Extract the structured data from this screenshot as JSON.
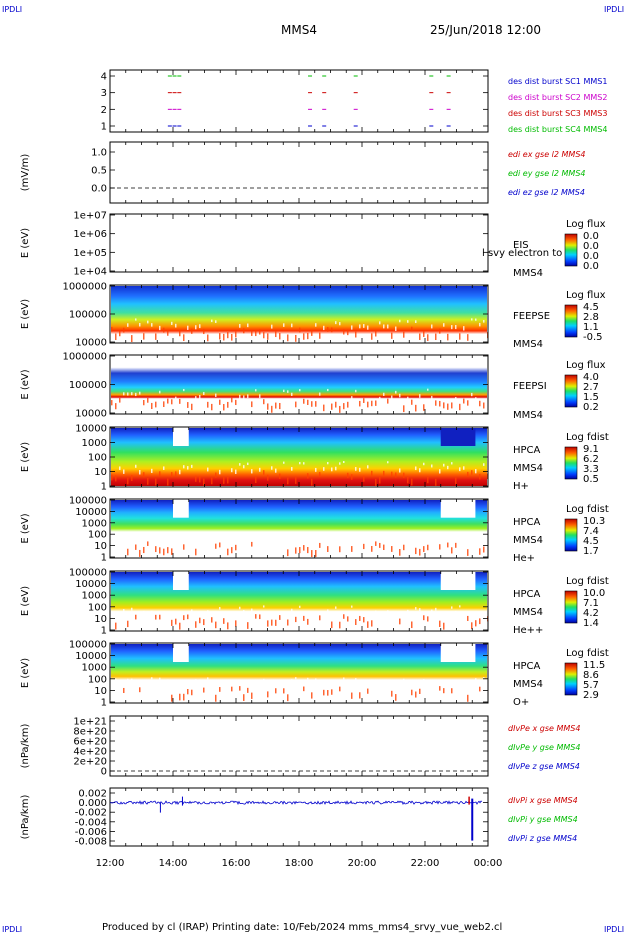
{
  "corner_label": "IPDLI",
  "header": {
    "spacecraft": "MMS4",
    "datetime": "25/Jun/2018 12:00"
  },
  "footer": {
    "text": "Produced by cl (IRAP)   Printing date: 10/Feb/2024   mms_mms4_srvy_vue_web2.cl"
  },
  "time_axis": {
    "ticks": [
      "12:00",
      "14:00",
      "16:00",
      "18:00",
      "20:00",
      "22:00",
      "00:00"
    ]
  },
  "chart_data": [
    {
      "type": "line",
      "id": "burst",
      "yticks": [
        "4",
        "3",
        "2",
        "1"
      ],
      "ylim": [
        0.5,
        4.5
      ],
      "legend": [
        {
          "label": "des dist burst SC1 MMS1",
          "color": "#0000cc"
        },
        {
          "label": "des dist burst SC2 MMS2",
          "color": "#cc00cc"
        },
        {
          "label": "des dist burst SC3 MMS3",
          "color": "#cc0000"
        },
        {
          "label": "des dist burst SC4 MMS4",
          "color": "#00bb00"
        }
      ],
      "series": [
        {
          "level": 4,
          "color": "#00bb00",
          "x": [
            13.9,
            14.05,
            14.2,
            18.35,
            18.8,
            19.8,
            22.2,
            22.75
          ]
        },
        {
          "level": 3,
          "color": "#cc0000",
          "x": [
            13.9,
            14.05,
            14.2,
            18.35,
            18.8,
            19.8,
            22.2,
            22.75
          ]
        },
        {
          "level": 2,
          "color": "#cc00cc",
          "x": [
            13.9,
            14.05,
            14.2,
            18.35,
            18.8,
            19.8,
            22.2,
            22.75
          ]
        },
        {
          "level": 1,
          "color": "#0000cc",
          "x": [
            13.9,
            14.05,
            14.2,
            18.35,
            18.8,
            19.8,
            22.2,
            22.75
          ]
        }
      ]
    },
    {
      "type": "line",
      "id": "edi",
      "ylabel": "(mV/m)",
      "yticks": [
        "1.0",
        "0.5",
        "0.0"
      ],
      "ylim": [
        -0.1,
        1.2
      ],
      "legend": [
        {
          "label": "edi ex gse l2 MMS4",
          "color": "#cc0000"
        },
        {
          "label": "edi ey gse l2 MMS4",
          "color": "#00bb00"
        },
        {
          "label": "edi ez gse l2 MMS4",
          "color": "#0000cc"
        }
      ]
    },
    {
      "type": "heatmap",
      "id": "eis",
      "ylabel": "E (eV)",
      "yticks": [
        "1e+07",
        "1e+06",
        "1e+05",
        "1e+04"
      ],
      "ylim": [
        10000,
        10000000
      ],
      "side_labels": [
        "EIS",
        "MMS4"
      ],
      "overlay_text": "l svy electron to",
      "cbar_title": "Log flux",
      "cbar_ticks": [
        "0.0",
        "0.0",
        "0.0",
        "0.0"
      ]
    },
    {
      "type": "heatmap",
      "id": "feepse",
      "ylabel": "E (eV)",
      "yticks": [
        "1000000",
        "100000",
        "10000"
      ],
      "ylim": [
        10000,
        1000000
      ],
      "side_labels": [
        "FEEPSE",
        "MMS4"
      ],
      "cbar_title": "Log flux",
      "cbar_ticks": [
        "4.5",
        "2.8",
        "1.1",
        "-0.5"
      ]
    },
    {
      "type": "heatmap",
      "id": "feepsi",
      "ylabel": "E (eV)",
      "yticks": [
        "1000000",
        "100000",
        "10000"
      ],
      "ylim": [
        10000,
        1000000
      ],
      "side_labels": [
        "FEEPSI",
        "MMS4"
      ],
      "cbar_title": "Log flux",
      "cbar_ticks": [
        "4.0",
        "2.7",
        "1.5",
        "0.2"
      ]
    },
    {
      "type": "heatmap",
      "id": "hpca_h",
      "ylabel": "E (eV)",
      "yticks": [
        "10000",
        "1000",
        "100",
        "10",
        "1"
      ],
      "ylim": [
        1,
        40000
      ],
      "side_labels": [
        "HPCA",
        "MMS4",
        "H+"
      ],
      "cbar_title": "Log fdist",
      "cbar_ticks": [
        "9.1",
        "6.2",
        "3.3",
        "0.5"
      ]
    },
    {
      "type": "heatmap",
      "id": "hpca_he",
      "ylabel": "E (eV)",
      "yticks": [
        "100000",
        "10000",
        "1000",
        "100",
        "10",
        "1"
      ],
      "ylim": [
        1,
        100000
      ],
      "side_labels": [
        "HPCA",
        "MMS4",
        "He+"
      ],
      "cbar_title": "Log fdist",
      "cbar_ticks": [
        "10.3",
        "7.4",
        "4.5",
        "1.7"
      ]
    },
    {
      "type": "heatmap",
      "id": "hpca_hepp",
      "ylabel": "E (eV)",
      "yticks": [
        "100000",
        "10000",
        "1000",
        "100",
        "10",
        "1"
      ],
      "ylim": [
        1,
        100000
      ],
      "side_labels": [
        "HPCA",
        "MMS4",
        "He++"
      ],
      "cbar_title": "Log fdist",
      "cbar_ticks": [
        "10.0",
        "7.1",
        "4.2",
        "1.4"
      ]
    },
    {
      "type": "heatmap",
      "id": "hpca_o",
      "ylabel": "E (eV)",
      "yticks": [
        "100000",
        "10000",
        "1000",
        "100",
        "10",
        "1"
      ],
      "ylim": [
        1,
        100000
      ],
      "side_labels": [
        "HPCA",
        "MMS4",
        "O+"
      ],
      "cbar_title": "Log fdist",
      "cbar_ticks": [
        "11.5",
        "8.6",
        "5.7",
        "2.9"
      ]
    },
    {
      "type": "line",
      "id": "divpe",
      "ylabel": "(nPa/km)",
      "yticks": [
        "1e+21",
        "8e+20",
        "6e+20",
        "4e+20",
        "2e+20",
        "0"
      ],
      "ylim": [
        -1e+19,
        1.08e+21
      ],
      "legend": [
        {
          "label": "dIvPe x gse MMS4",
          "color": "#cc0000"
        },
        {
          "label": "dIvPe y gse MMS4",
          "color": "#00bb00"
        },
        {
          "label": "dIvPe z gse MMS4",
          "color": "#0000cc"
        }
      ]
    },
    {
      "type": "line",
      "id": "divpi",
      "ylabel": "(nPa/km)",
      "yticks": [
        "0.002",
        "0.000",
        "-0.002",
        "-0.004",
        "-0.006",
        "-0.008"
      ],
      "ylim": [
        -0.0092,
        0.0028
      ],
      "legend": [
        {
          "label": "dIvPi x gse MMS4",
          "color": "#cc0000"
        },
        {
          "label": "dIvPi y gse MMS4",
          "color": "#00bb00"
        },
        {
          "label": "dIvPi z gse MMS4",
          "color": "#0000cc"
        }
      ]
    }
  ]
}
